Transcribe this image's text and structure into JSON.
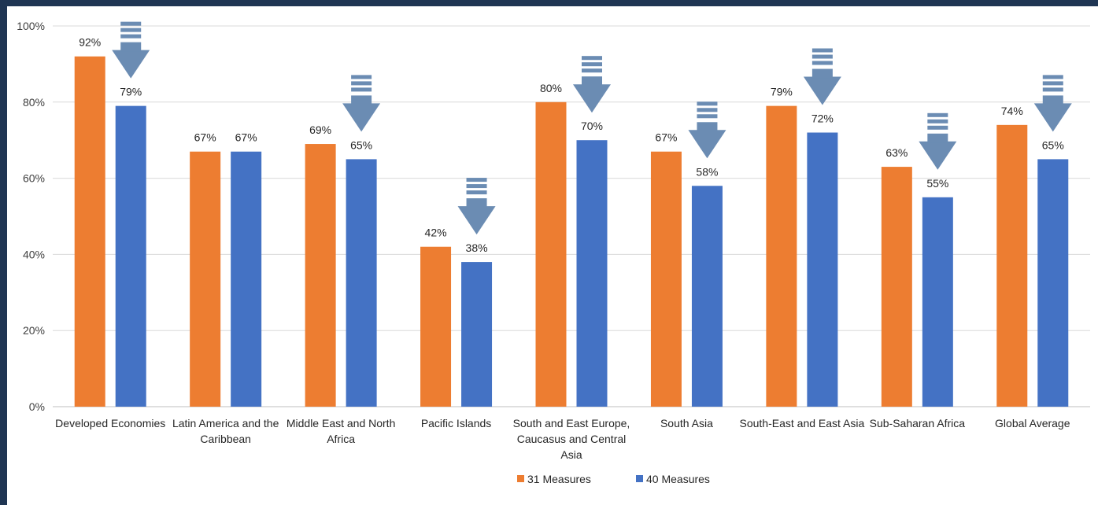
{
  "colors": {
    "series_1": "#ed7d31",
    "series_2": "#4472c4",
    "arrow": "#6b8cb3",
    "grid": "#d9d9d9",
    "frame": "#1f3553"
  },
  "chart_data": {
    "type": "bar",
    "categories": [
      [
        "Developed Economies"
      ],
      [
        "Latin America and the",
        "Caribbean"
      ],
      [
        "Middle East and North",
        "Africa"
      ],
      [
        "Pacific Islands"
      ],
      [
        "South and East Europe,",
        "Caucasus and Central",
        "Asia"
      ],
      [
        "South Asia"
      ],
      [
        "South-East and East Asia"
      ],
      [
        "Sub-Saharan Africa"
      ],
      [
        "Global Average"
      ]
    ],
    "series": [
      {
        "name": "31 Measures",
        "values": [
          92,
          67,
          69,
          42,
          80,
          67,
          79,
          63,
          74
        ],
        "labels": [
          "92%",
          "67%",
          "69%",
          "42%",
          "80%",
          "67%",
          "79%",
          "63%",
          "74%"
        ]
      },
      {
        "name": "40 Measures",
        "values": [
          79,
          67,
          65,
          38,
          70,
          58,
          72,
          55,
          65
        ],
        "labels": [
          "79%",
          "67%",
          "65%",
          "38%",
          "70%",
          "58%",
          "72%",
          "55%",
          "65%"
        ]
      }
    ],
    "decrease_arrows": [
      true,
      false,
      true,
      true,
      true,
      true,
      true,
      true,
      true
    ],
    "ylim": [
      0,
      100
    ],
    "yticks": [
      0,
      20,
      40,
      60,
      80,
      100
    ],
    "ytick_labels": [
      "0%",
      "20%",
      "40%",
      "60%",
      "80%",
      "100%"
    ],
    "grid": true,
    "legend_position": "bottom"
  }
}
